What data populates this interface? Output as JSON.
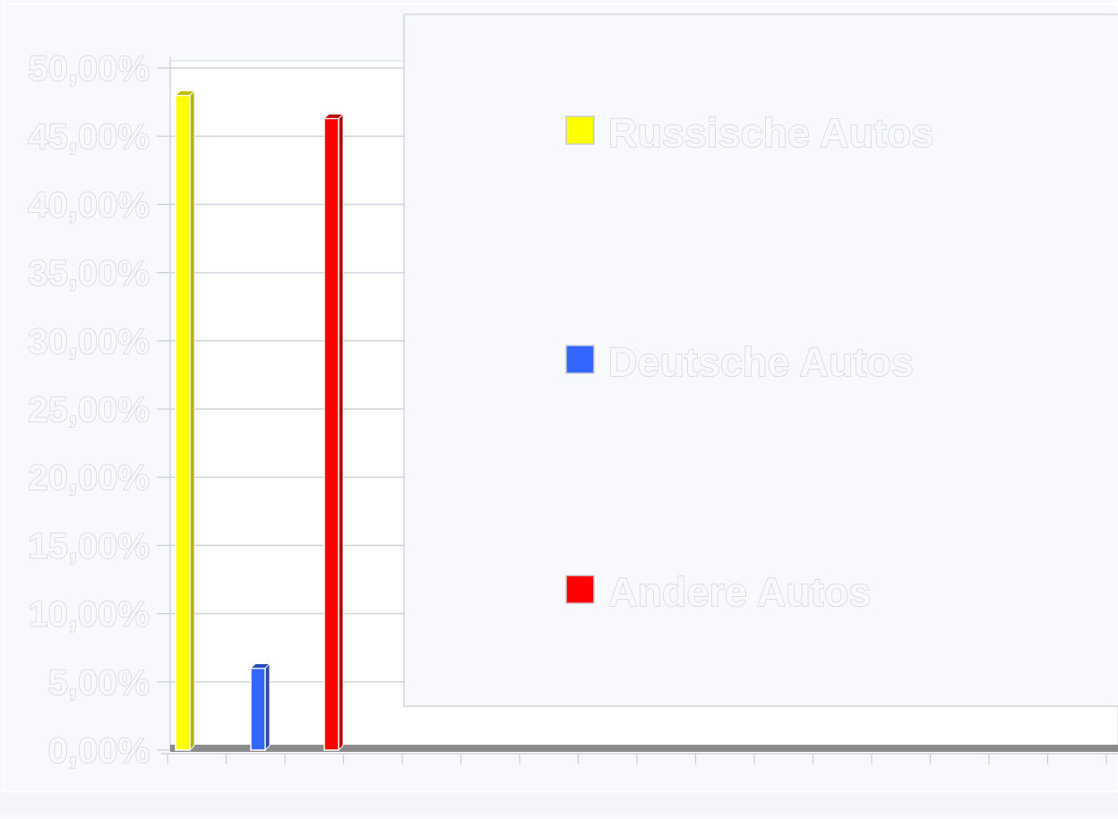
{
  "chart_data": {
    "type": "bar",
    "categories": [
      "Russische Autos",
      "Deutsche Autos",
      "Andere Autos"
    ],
    "values": [
      48.0,
      6.0,
      46.3
    ],
    "colors": [
      "#ffff00",
      "#3366ff",
      "#ff0000"
    ],
    "ylim": [
      0,
      50
    ],
    "yticks": [
      "0,00%",
      "5,00%",
      "10,00%",
      "15,00%",
      "20,00%",
      "25,00%",
      "30,00%",
      "35,00%",
      "40,00%",
      "45,00%",
      "50,00%"
    ],
    "grid": true,
    "legend_position": "right",
    "legend": [
      {
        "label": "Russische Autos",
        "color": "#ffff00"
      },
      {
        "label": "Deutsche Autos",
        "color": "#3366ff"
      },
      {
        "label": "Andere Autos",
        "color": "#ff0000"
      }
    ]
  }
}
